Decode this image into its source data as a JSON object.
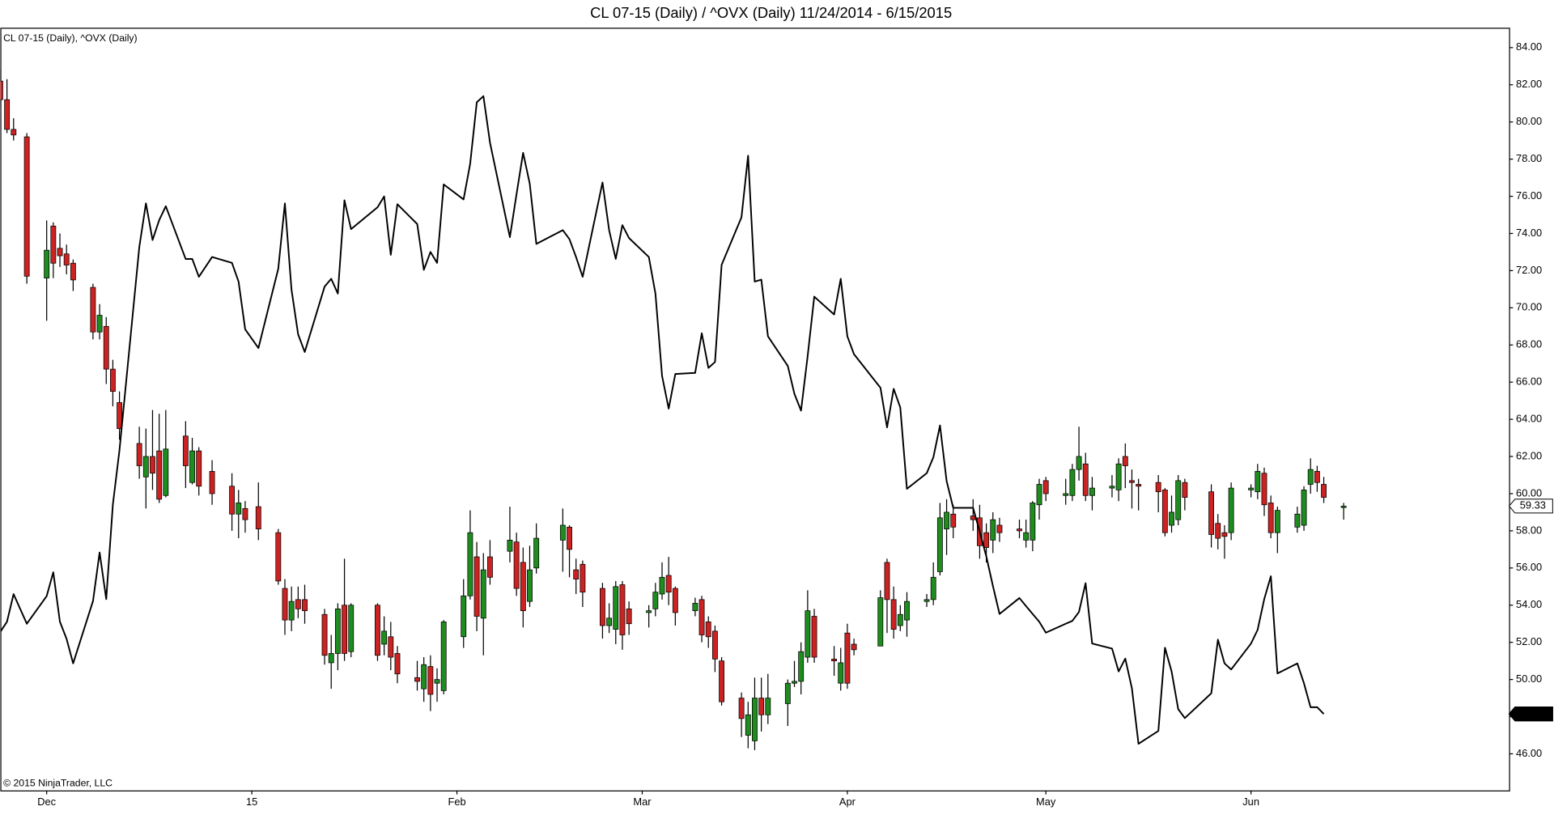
{
  "chart_data": {
    "type": "candlestick",
    "title": "CL 07-15 (Daily) / ^OVX (Daily)  11/24/2014 - 6/15/2015",
    "legend_text": "CL 07-15 (Daily), ^OVX (Daily)",
    "copyright": "© 2015 NinjaTrader, LLC",
    "x": [
      "11/24/2014",
      "11/25/2014",
      "11/26/2014",
      "11/28/2014",
      "12/1/2014",
      "12/2/2014",
      "12/3/2014",
      "12/4/2014",
      "12/5/2014",
      "12/8/2014",
      "12/9/2014",
      "12/10/2014",
      "12/11/2014",
      "12/12/2014",
      "12/15/2014",
      "12/16/2014",
      "12/17/2014",
      "12/18/2014",
      "12/19/2014",
      "12/22/2014",
      "12/23/2014",
      "12/24/2014",
      "12/26/2014",
      "12/29/2014",
      "12/30/2014",
      "12/31/2014",
      "1/2/2015",
      "1/5/2015",
      "1/6/2015",
      "1/7/2015",
      "1/8/2015",
      "1/9/2015",
      "1/12/2015",
      "1/13/2015",
      "1/14/2015",
      "1/15/2015",
      "1/16/2015",
      "1/20/2015",
      "1/21/2015",
      "1/22/2015",
      "1/23/2015",
      "1/26/2015",
      "1/27/2015",
      "1/28/2015",
      "1/29/2015",
      "1/30/2015",
      "2/2/2015",
      "2/3/2015",
      "2/4/2015",
      "2/5/2015",
      "2/6/2015",
      "2/9/2015",
      "2/10/2015",
      "2/11/2015",
      "2/12/2015",
      "2/13/2015",
      "2/17/2015",
      "2/18/2015",
      "2/19/2015",
      "2/20/2015",
      "2/23/2015",
      "2/24/2015",
      "2/25/2015",
      "2/26/2015",
      "2/27/2015",
      "3/2/2015",
      "3/3/2015",
      "3/4/2015",
      "3/5/2015",
      "3/6/2015",
      "3/9/2015",
      "3/10/2015",
      "3/11/2015",
      "3/12/2015",
      "3/13/2015",
      "3/16/2015",
      "3/17/2015",
      "3/18/2015",
      "3/19/2015",
      "3/20/2015",
      "3/23/2015",
      "3/24/2015",
      "3/25/2015",
      "3/26/2015",
      "3/27/2015",
      "3/30/2015",
      "3/31/2015",
      "4/1/2015",
      "4/2/2015",
      "4/6/2015",
      "4/7/2015",
      "4/8/2015",
      "4/9/2015",
      "4/10/2015",
      "4/13/2015",
      "4/14/2015",
      "4/15/2015",
      "4/16/2015",
      "4/17/2015",
      "4/20/2015",
      "4/21/2015",
      "4/22/2015",
      "4/23/2015",
      "4/24/2015",
      "4/27/2015",
      "4/28/2015",
      "4/29/2015",
      "4/30/2015",
      "5/1/2015",
      "5/4/2015",
      "5/5/2015",
      "5/6/2015",
      "5/7/2015",
      "5/8/2015",
      "5/11/2015",
      "5/12/2015",
      "5/13/2015",
      "5/14/2015",
      "5/15/2015",
      "5/18/2015",
      "5/19/2015",
      "5/20/2015",
      "5/21/2015",
      "5/22/2015",
      "5/26/2015",
      "5/27/2015",
      "5/28/2015",
      "5/29/2015",
      "6/1/2015",
      "6/2/2015",
      "6/3/2015",
      "6/4/2015",
      "6/5/2015",
      "6/8/2015",
      "6/9/2015",
      "6/10/2015",
      "6/11/2015",
      "6/12/2015",
      "6/15/2015"
    ],
    "series": [
      {
        "type": "candlestick",
        "up_color": "#1e8c1e",
        "down_color": "#cc2222",
        "open": [
          82.2,
          81.2,
          79.6,
          79.2,
          71.6,
          74.4,
          73.2,
          72.9,
          72.4,
          71.1,
          68.7,
          69.0,
          66.7,
          64.9,
          62.7,
          60.9,
          62.0,
          62.3,
          59.9,
          63.1,
          60.6,
          62.3,
          61.2,
          60.4,
          58.9,
          59.2,
          59.3,
          57.9,
          54.9,
          53.2,
          54.3,
          54.3,
          53.5,
          50.9,
          51.4,
          54.0,
          51.5,
          54.0,
          51.9,
          52.3,
          51.4,
          50.1,
          49.5,
          50.7,
          49.8,
          49.4,
          52.3,
          54.5,
          56.6,
          53.3,
          56.6,
          56.9,
          57.4,
          56.3,
          54.2,
          56.0,
          57.5,
          58.2,
          55.9,
          56.2,
          54.9,
          52.9,
          52.7,
          55.1,
          53.8,
          53.6,
          53.8,
          54.6,
          55.6,
          54.9,
          53.7,
          54.3,
          53.1,
          52.6,
          51.0,
          49.0,
          47.0,
          46.7,
          49.0,
          48.1,
          48.7,
          49.8,
          49.9,
          51.2,
          53.4,
          51.1,
          49.8,
          52.5,
          51.9,
          51.8,
          56.3,
          54.3,
          52.9,
          53.2,
          54.2,
          54.3,
          55.8,
          58.1,
          58.9,
          58.8,
          58.7,
          57.9,
          57.5,
          58.3,
          58.1,
          57.5,
          57.5,
          59.4,
          60.7,
          59.9,
          59.9,
          61.3,
          61.6,
          59.9,
          60.3,
          60.2,
          62.0,
          60.7,
          60.5,
          60.6,
          60.2,
          58.3,
          58.6,
          60.6,
          60.1,
          58.4,
          57.9,
          57.9,
          60.2,
          60.1,
          61.1,
          59.5,
          57.9,
          58.2,
          58.3,
          60.5,
          61.2,
          60.5,
          59.25
        ],
        "high": [
          82.8,
          82.3,
          80.2,
          79.4,
          74.7,
          74.6,
          74.0,
          73.4,
          72.6,
          71.3,
          70.2,
          69.5,
          67.2,
          65.5,
          63.6,
          63.5,
          64.5,
          64.3,
          64.5,
          63.9,
          63.0,
          62.5,
          61.8,
          61.1,
          60.2,
          59.6,
          60.6,
          58.1,
          55.4,
          55.0,
          55.0,
          55.1,
          53.8,
          52.4,
          54.1,
          56.5,
          54.1,
          54.1,
          53.4,
          53.1,
          51.8,
          51.0,
          51.2,
          51.3,
          50.6,
          53.2,
          55.4,
          59.1,
          57.4,
          56.8,
          57.5,
          59.3,
          57.9,
          57.1,
          57.2,
          58.4,
          59.2,
          58.3,
          56.5,
          56.4,
          55.2,
          54.1,
          55.3,
          55.3,
          54.2,
          54.0,
          55.2,
          56.3,
          56.6,
          55.0,
          54.4,
          54.5,
          53.4,
          52.9,
          51.2,
          49.3,
          48.8,
          50.1,
          50.1,
          50.3,
          50.0,
          51.0,
          52.0,
          54.8,
          53.8,
          51.8,
          51.7,
          53.0,
          52.2,
          54.8,
          56.5,
          55.0,
          54.0,
          54.7,
          54.6,
          56.3,
          59.5,
          59.7,
          59.4,
          59.7,
          59.4,
          58.4,
          59.0,
          58.7,
          58.6,
          58.6,
          59.6,
          60.8,
          60.9,
          60.8,
          61.6,
          63.6,
          62.2,
          60.9,
          61.0,
          61.9,
          62.7,
          61.3,
          60.8,
          61.0,
          60.3,
          59.9,
          61.0,
          60.8,
          60.5,
          58.9,
          58.3,
          60.6,
          60.5,
          61.6,
          61.4,
          59.9,
          59.3,
          59.3,
          60.4,
          61.9,
          61.5,
          60.9,
          59.5
        ],
        "low": [
          80.8,
          79.4,
          79.0,
          71.3,
          69.3,
          71.6,
          72.2,
          71.8,
          70.9,
          68.3,
          68.3,
          65.9,
          64.7,
          62.9,
          60.8,
          59.2,
          60.2,
          59.5,
          59.8,
          60.3,
          60.5,
          59.9,
          59.4,
          58.0,
          57.6,
          57.9,
          57.5,
          55.1,
          52.4,
          52.6,
          53.3,
          53.0,
          50.8,
          49.5,
          50.5,
          51.0,
          51.2,
          51.0,
          51.3,
          50.5,
          49.8,
          49.4,
          48.8,
          48.3,
          48.8,
          49.2,
          51.7,
          54.3,
          52.6,
          51.3,
          55.1,
          56.3,
          54.5,
          52.8,
          53.9,
          55.7,
          55.8,
          55.5,
          54.6,
          53.9,
          52.2,
          52.5,
          51.9,
          51.6,
          52.4,
          52.8,
          53.4,
          54.3,
          54.0,
          52.9,
          53.4,
          52.0,
          51.7,
          50.4,
          48.6,
          46.9,
          46.3,
          46.2,
          47.2,
          47.6,
          47.5,
          49.6,
          49.2,
          50.9,
          50.9,
          50.2,
          49.4,
          49.5,
          51.3,
          51.8,
          52.5,
          52.2,
          52.6,
          52.3,
          53.9,
          54.0,
          55.6,
          56.7,
          57.6,
          58.0,
          56.5,
          56.3,
          56.8,
          57.4,
          57.6,
          57.1,
          56.9,
          58.6,
          59.6,
          59.4,
          59.6,
          60.7,
          59.6,
          59.1,
          59.8,
          59.6,
          60.3,
          59.2,
          59.1,
          59.0,
          57.7,
          57.9,
          58.3,
          59.1,
          57.1,
          57.0,
          56.5,
          57.5,
          59.8,
          59.7,
          58.8,
          57.6,
          56.8,
          57.9,
          58.0,
          60.0,
          60.1,
          59.5,
          58.6
        ],
        "close": [
          81.2,
          79.6,
          79.3,
          71.7,
          73.1,
          72.4,
          72.8,
          72.3,
          71.5,
          68.7,
          69.6,
          66.7,
          65.5,
          63.5,
          61.5,
          62.0,
          61.1,
          59.7,
          62.4,
          61.5,
          62.3,
          60.4,
          60.0,
          58.9,
          59.5,
          58.6,
          58.1,
          55.3,
          53.2,
          54.2,
          53.8,
          53.7,
          51.3,
          51.4,
          53.8,
          51.4,
          54.0,
          51.3,
          52.6,
          51.2,
          50.3,
          49.9,
          50.8,
          49.2,
          50.0,
          53.1,
          54.5,
          57.9,
          53.4,
          55.9,
          55.5,
          57.5,
          54.9,
          53.7,
          55.9,
          57.6,
          58.3,
          57.0,
          55.4,
          54.7,
          52.9,
          53.3,
          55.0,
          52.4,
          53.0,
          53.7,
          54.7,
          55.5,
          54.7,
          53.6,
          54.1,
          52.4,
          52.3,
          51.1,
          48.8,
          47.9,
          48.1,
          49.0,
          48.1,
          49.0,
          49.8,
          49.9,
          51.5,
          53.7,
          51.2,
          51.0,
          50.9,
          49.8,
          51.6,
          54.4,
          54.3,
          52.7,
          53.5,
          54.2,
          54.3,
          55.5,
          58.7,
          59.0,
          58.2,
          58.6,
          57.2,
          57.1,
          58.6,
          57.9,
          58.0,
          57.9,
          59.5,
          60.5,
          60.0,
          60.0,
          61.3,
          62.0,
          59.9,
          60.3,
          60.4,
          61.6,
          61.5,
          60.6,
          60.4,
          60.1,
          57.9,
          59.0,
          60.7,
          59.8,
          57.8,
          57.6,
          57.7,
          60.3,
          60.3,
          61.2,
          59.4,
          57.9,
          59.1,
          58.9,
          60.2,
          61.3,
          60.6,
          59.8,
          59.33
        ]
      },
      {
        "type": "line",
        "axis": "y2",
        "color": "#000000",
        "values": [
          35.28,
          35.74,
          37.01,
          35.65,
          36.92,
          38.01,
          35.74,
          34.96,
          33.83,
          36.69,
          38.92,
          36.78,
          41.11,
          43.61,
          52.94,
          54.94,
          53.26,
          54.17,
          54.81,
          52.39,
          52.39,
          51.57,
          52.48,
          52.21,
          51.35,
          49.16,
          48.3,
          51.94,
          54.94,
          50.98,
          48.93,
          48.12,
          51.12,
          51.48,
          50.8,
          55.08,
          53.76,
          54.76,
          55.26,
          52.58,
          54.9,
          53.99,
          51.89,
          52.71,
          52.21,
          55.81,
          55.12,
          56.76,
          59.58,
          59.86,
          57.72,
          53.39,
          55.35,
          57.26,
          55.85,
          53.08,
          53.71,
          53.3,
          52.48,
          51.57,
          55.9,
          53.71,
          52.39,
          53.94,
          53.35,
          52.48,
          50.8,
          47.02,
          45.52,
          47.11,
          47.16,
          48.98,
          47.39,
          47.66,
          52.12,
          54.3,
          57.13,
          51.35,
          51.44,
          48.84,
          47.48,
          46.2,
          45.43,
          47.93,
          50.66,
          49.84,
          51.48,
          48.84,
          48.02,
          46.48,
          44.66,
          46.43,
          45.57,
          41.84,
          42.56,
          43.29,
          44.75,
          42.2,
          40.97,
          40.97,
          39.88,
          38.74,
          37.38,
          36.1,
          36.83,
          36.46,
          36.1,
          35.74,
          35.24,
          35.65,
          35.78,
          36.19,
          37.51,
          34.74,
          34.51,
          33.46,
          34.05,
          32.69,
          30.14,
          30.73,
          34.55,
          33.46,
          31.73,
          31.32,
          32.46,
          34.92,
          33.83,
          33.55,
          34.74,
          35.37,
          36.78,
          37.83,
          33.37,
          33.83,
          32.92,
          31.82,
          31.82,
          31.51,
          null
        ]
      }
    ],
    "xlim": [
      "11/24/2014",
      "7/10/2015"
    ],
    "xticks": [
      {
        "value": "12/1/2014",
        "label": "Dec"
      },
      {
        "value": "1/1/2015",
        "label": "15"
      },
      {
        "value": "2/1/2015",
        "label": "Feb"
      },
      {
        "value": "3/1/2015",
        "label": "Mar"
      },
      {
        "value": "4/1/2015",
        "label": "Apr"
      },
      {
        "value": "5/1/2015",
        "label": "May"
      },
      {
        "value": "6/1/2015",
        "label": "Jun"
      }
    ],
    "ylim": [
      44.03,
      85.07
    ],
    "yticks": [
      {
        "value": 46,
        "label": "46.00"
      },
      {
        "value": 48,
        "label": "48.00"
      },
      {
        "value": 50,
        "label": "50.00"
      },
      {
        "value": 52,
        "label": "52.00"
      },
      {
        "value": 54,
        "label": "54.00"
      },
      {
        "value": 56,
        "label": "56.00"
      },
      {
        "value": 58,
        "label": "58.00"
      },
      {
        "value": 60,
        "label": "60.00"
      },
      {
        "value": 62,
        "label": "62.00"
      },
      {
        "value": 64,
        "label": "64.00"
      },
      {
        "value": 66,
        "label": "66.00"
      },
      {
        "value": 68,
        "label": "68.00"
      },
      {
        "value": 70,
        "label": "70.00"
      },
      {
        "value": 72,
        "label": "72.00"
      },
      {
        "value": 74,
        "label": "74.00"
      },
      {
        "value": 76,
        "label": "76.00"
      },
      {
        "value": 78,
        "label": "78.00"
      },
      {
        "value": 80,
        "label": "80.00"
      },
      {
        "value": 82,
        "label": "82.00"
      },
      {
        "value": 84,
        "label": "84.00"
      }
    ],
    "y2lim": [
      28,
      63
    ],
    "grid": false
  }
}
